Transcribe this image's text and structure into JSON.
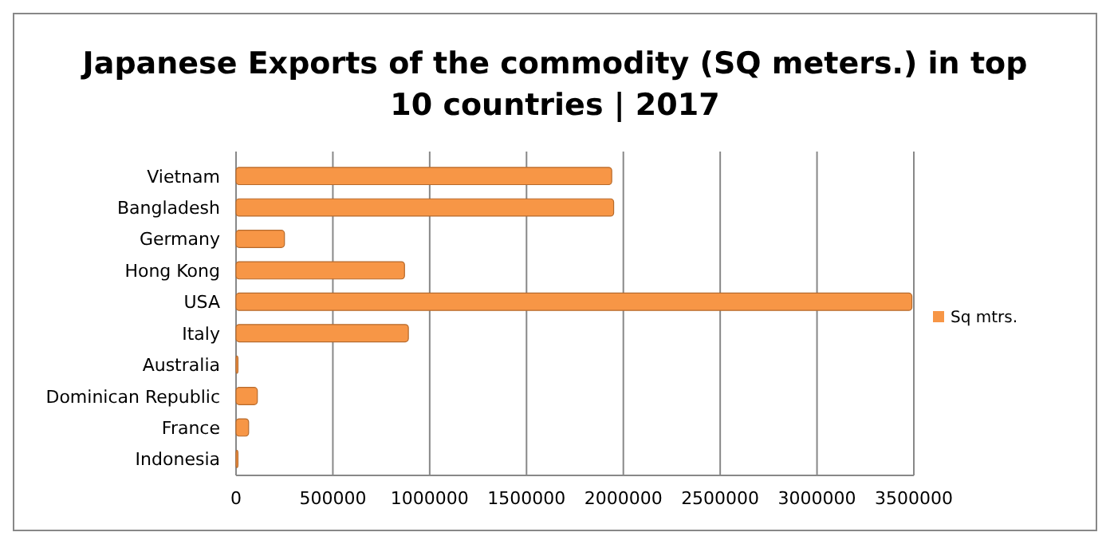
{
  "chart_data": {
    "type": "bar",
    "orientation": "horizontal",
    "title": "Japanese Exports of the commodity (SQ meters.) in top 10 countries | 2017",
    "categories": [
      "Vietnam",
      "Bangladesh",
      "Germany",
      "Hong Kong",
      "USA",
      "Italy",
      "Australia",
      "Dominican Republic",
      "France",
      "Indonesia"
    ],
    "series": [
      {
        "name": "Sq mtrs.",
        "color": "#f79646",
        "values": [
          1940000,
          1950000,
          250000,
          870000,
          3490000,
          890000,
          10000,
          110000,
          65000,
          10000
        ]
      }
    ],
    "xlim": [
      0,
      3500000
    ],
    "xticks": [
      0,
      500000,
      1000000,
      1500000,
      2000000,
      2500000,
      3000000,
      3500000
    ],
    "grid": "x",
    "legend": "right"
  }
}
